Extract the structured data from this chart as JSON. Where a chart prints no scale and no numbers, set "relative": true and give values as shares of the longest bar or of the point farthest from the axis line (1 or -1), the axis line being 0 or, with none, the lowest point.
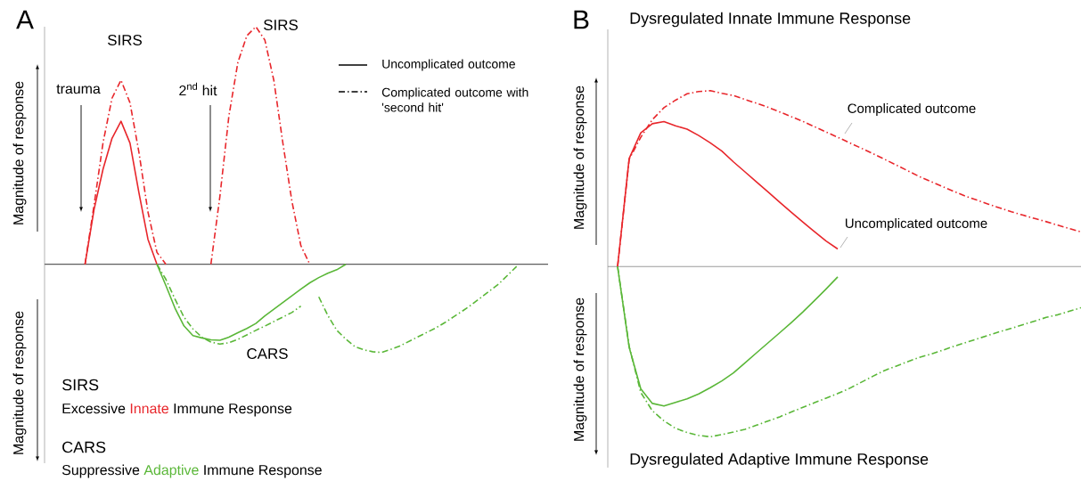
{
  "chart_data": [
    {
      "type": "line",
      "title": "A",
      "ylabel": "Magnitude of response",
      "relative": true,
      "categories": [
        null,
        null,
        null,
        null,
        null,
        null,
        null,
        null,
        null,
        null,
        null,
        null,
        null,
        null,
        null,
        null,
        null,
        null,
        null,
        null,
        null,
        null,
        null,
        null,
        null,
        null,
        null,
        null,
        null,
        null,
        null,
        null,
        null,
        null,
        null,
        null,
        null,
        null,
        null,
        null,
        null,
        null,
        null,
        null,
        null,
        null,
        null,
        null,
        null,
        null
      ],
      "annotations": [
        "SIRS",
        "SIRS",
        "trauma",
        "2$^{nd}$ hit",
        "CARS",
        "Uncomplicated outcome",
        "Complicated outcome with 'second hit'",
        "SIRS",
        "Excessive",
        "Innate",
        "Immune Response",
        "CARS",
        "Suppressive",
        "Adaptive",
        "Immune Response"
      ],
      "series": [
        {
          "color": "#e8262b",
          "line_style": "solid",
          "values": [
            0,
            0.23,
            0.4,
            0.53,
            0.602,
            0.51,
            0.3,
            0.105,
            0,
            null,
            null,
            null,
            null,
            null,
            null,
            null,
            null,
            null,
            null,
            null,
            null,
            null,
            null,
            null,
            null,
            null,
            null,
            null,
            null,
            null,
            null,
            null,
            null,
            null,
            null,
            null,
            null,
            null,
            null,
            null,
            null,
            null,
            null,
            null,
            null,
            null,
            null,
            null,
            null,
            null
          ]
        },
        {
          "color": "#e8262b",
          "line_style": "dashdot",
          "values": [
            0,
            0.248,
            0.511,
            0.699,
            0.775,
            0.68,
            0.47,
            0.22,
            0.05,
            0,
            null,
            null,
            null,
            null,
            0,
            0.286,
            0.624,
            0.85,
            0.962,
            1.0,
            0.944,
            0.774,
            0.511,
            0.267,
            0.079,
            0,
            null,
            null,
            null,
            null,
            null,
            null,
            null,
            null,
            null,
            null,
            null,
            null,
            null,
            null,
            null,
            null,
            null,
            null,
            null,
            null,
            null,
            null,
            null,
            null
          ]
        },
        {
          "color": "#5ab738",
          "line_style": "solid",
          "values": [
            null,
            null,
            null,
            null,
            null,
            null,
            null,
            null,
            0,
            -0.09,
            -0.184,
            -0.259,
            -0.3,
            -0.31,
            -0.318,
            -0.32,
            -0.307,
            -0.288,
            -0.27,
            -0.249,
            -0.217,
            -0.189,
            -0.161,
            -0.133,
            -0.105,
            -0.078,
            -0.056,
            -0.038,
            -0.023,
            0,
            null,
            null,
            null,
            null,
            null,
            null,
            null,
            null,
            null,
            null,
            null,
            null,
            null,
            null,
            null,
            null,
            null,
            null,
            null,
            null
          ]
        },
        {
          "color": "#5ab738",
          "line_style": "dashdot",
          "values": [
            null,
            null,
            null,
            null,
            null,
            null,
            null,
            null,
            0,
            -0.064,
            -0.146,
            -0.222,
            -0.272,
            -0.307,
            -0.327,
            -0.336,
            -0.33,
            -0.316,
            -0.297,
            -0.278,
            -0.26,
            -0.241,
            -0.222,
            -0.203,
            -0.176,
            null,
            -0.137,
            -0.215,
            -0.278,
            -0.315,
            -0.346,
            -0.36,
            -0.368,
            -0.371,
            -0.358,
            -0.344,
            -0.325,
            -0.306,
            -0.287,
            -0.268,
            -0.246,
            -0.221,
            -0.196,
            -0.17,
            -0.141,
            -0.112,
            -0.083,
            -0.046,
            -0.009,
            null
          ]
        }
      ]
    },
    {
      "type": "line",
      "title": "B",
      "subtitle": "Dysregulated Innate Immune Response",
      "xlabel": "Dysregulated Adaptive Immune Response",
      "ylabel": "Magnitude of response",
      "relative": true,
      "categories": [
        null,
        null,
        null,
        null,
        null,
        null,
        null,
        null,
        null,
        null,
        null,
        null,
        null,
        null,
        null,
        null,
        null,
        null,
        null,
        null,
        null,
        null,
        null,
        null,
        null,
        null,
        null,
        null,
        null,
        null,
        null,
        null,
        null,
        null,
        null,
        null,
        null,
        null,
        null,
        null,
        null
      ],
      "annotations": [
        "Complicated outcome",
        "Uncomplicated outcome"
      ],
      "series": [
        {
          "color": "#e8262b",
          "line_style": "solid",
          "values": [
            0,
            0.615,
            0.76,
            0.812,
            0.824,
            0.8,
            0.781,
            0.745,
            0.703,
            0.656,
            0.595,
            0.538,
            0.48,
            0.423,
            0.365,
            0.308,
            0.252,
            0.198,
            0.145,
            0.1,
            null,
            null,
            null,
            null,
            null,
            null,
            null,
            null,
            null,
            null,
            null,
            null,
            null,
            null,
            null,
            null,
            null,
            null,
            null,
            null,
            null
          ]
        },
        {
          "color": "#e8262b",
          "line_style": "dashdot",
          "values": [
            0,
            0.61,
            0.735,
            0.835,
            0.903,
            0.946,
            0.982,
            0.995,
            1.0,
            0.985,
            0.972,
            0.95,
            0.928,
            0.905,
            0.879,
            0.852,
            0.825,
            0.795,
            0.765,
            0.735,
            0.704,
            0.674,
            0.643,
            0.611,
            0.579,
            0.546,
            0.513,
            0.484,
            0.456,
            0.428,
            0.401,
            0.378,
            0.355,
            0.333,
            0.311,
            0.292,
            0.273,
            0.255,
            0.235,
            0.216,
            0.197
          ]
        },
        {
          "color": "#5ab738",
          "line_style": "solid",
          "values": [
            0,
            -0.46,
            -0.695,
            -0.778,
            -0.793,
            -0.772,
            -0.752,
            -0.724,
            -0.689,
            -0.65,
            -0.605,
            -0.548,
            -0.49,
            -0.433,
            -0.376,
            -0.318,
            -0.258,
            -0.193,
            -0.127,
            -0.059,
            null,
            null,
            null,
            null,
            null,
            null,
            null,
            null,
            null,
            null,
            null,
            null,
            null,
            null,
            null,
            null,
            null,
            null,
            null,
            null,
            null
          ]
        },
        {
          "color": "#5ab738",
          "line_style": "dashdot",
          "values": [
            0,
            -0.454,
            -0.716,
            -0.82,
            -0.877,
            -0.92,
            -0.943,
            -0.96,
            -0.968,
            -0.955,
            -0.941,
            -0.925,
            -0.902,
            -0.878,
            -0.854,
            -0.827,
            -0.8,
            -0.774,
            -0.748,
            -0.722,
            -0.693,
            -0.659,
            -0.625,
            -0.592,
            -0.567,
            -0.542,
            -0.517,
            -0.499,
            -0.477,
            -0.454,
            -0.433,
            -0.412,
            -0.391,
            -0.37,
            -0.351,
            -0.33,
            -0.31,
            -0.289,
            -0.274,
            -0.254,
            -0.234
          ]
        }
      ]
    }
  ]
}
